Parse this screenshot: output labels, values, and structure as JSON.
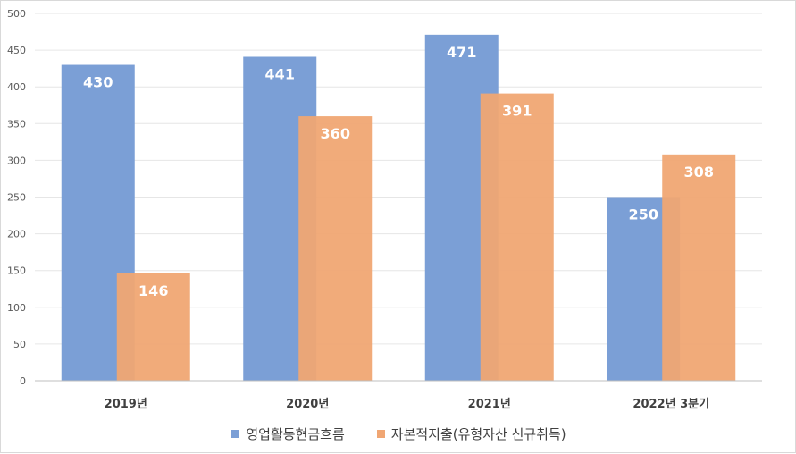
{
  "chart_data": {
    "type": "bar",
    "categories": [
      "2019년",
      "2020년",
      "2021년",
      "2022년 3분기"
    ],
    "series": [
      {
        "name": "영업활동현금흐름",
        "values": [
          430,
          441,
          471,
          250
        ],
        "color": "#7b9fd6"
      },
      {
        "name": "자본적지출(유형자산 신규취득)",
        "values": [
          146,
          360,
          391,
          308
        ],
        "color": "#f0a673"
      }
    ],
    "ylim": [
      0,
      500
    ],
    "yticks": [
      "0",
      "50",
      "100",
      "150",
      "200",
      "250",
      "300",
      "350",
      "400",
      "450",
      "500"
    ],
    "grid": true,
    "legend_position": "bottom",
    "data_labels": true,
    "title": "",
    "xlabel": "",
    "ylabel": ""
  }
}
